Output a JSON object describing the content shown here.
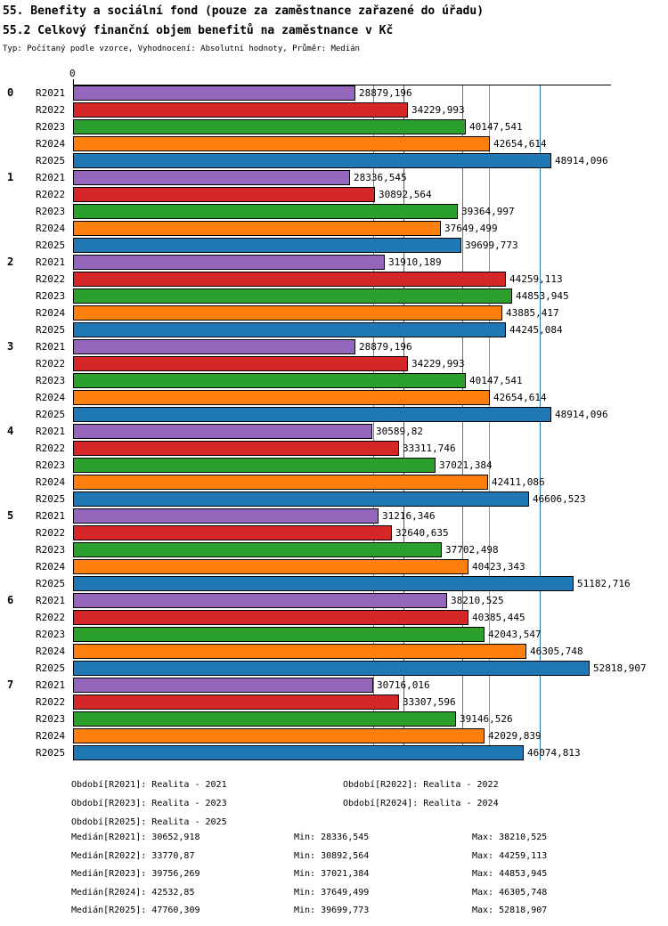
{
  "header": {
    "title": "55. Benefity a sociální fond (pouze za zaměstnance zařazené do úřadu)",
    "subtitle": "55.2 Celkový finanční objem benefitů na zaměstnance v Kč",
    "meta": "Typ: Počítaný podle vzorce, Vyhodnocení: Absolutní hodnoty, Průměr: Medián"
  },
  "chart_data": {
    "type": "bar",
    "orientation": "horizontal",
    "title": "55. Benefity a sociální fond (pouze za zaměstnance zařazené do úřadu)",
    "subtitle": "55.2 Celkový finanční objem benefitů na zaměstnance v Kč",
    "axis_origin_label": "0",
    "xlim": [
      0,
      55000
    ],
    "grid": "median-reference-lines",
    "series_names": [
      "R2021",
      "R2022",
      "R2023",
      "R2024",
      "R2025"
    ],
    "series_colors": {
      "R2021": "#9467bd",
      "R2022": "#d62728",
      "R2023": "#2ca02c",
      "R2024": "#ff7f0e",
      "R2025": "#1f77b4"
    },
    "groups": [
      {
        "label": "0",
        "bars": [
          {
            "series": "R2021",
            "value": "28879,196"
          },
          {
            "series": "R2022",
            "value": "34229,993"
          },
          {
            "series": "R2023",
            "value": "40147,541"
          },
          {
            "series": "R2024",
            "value": "42654,614"
          },
          {
            "series": "R2025",
            "value": "48914,096"
          }
        ]
      },
      {
        "label": "1",
        "bars": [
          {
            "series": "R2021",
            "value": "28336,545"
          },
          {
            "series": "R2022",
            "value": "30892,564"
          },
          {
            "series": "R2023",
            "value": "39364,997"
          },
          {
            "series": "R2024",
            "value": "37649,499"
          },
          {
            "series": "R2025",
            "value": "39699,773"
          }
        ]
      },
      {
        "label": "2",
        "bars": [
          {
            "series": "R2021",
            "value": "31910,189"
          },
          {
            "series": "R2022",
            "value": "44259,113"
          },
          {
            "series": "R2023",
            "value": "44853,945"
          },
          {
            "series": "R2024",
            "value": "43885,417"
          },
          {
            "series": "R2025",
            "value": "44245,084"
          }
        ]
      },
      {
        "label": "3",
        "bars": [
          {
            "series": "R2021",
            "value": "28879,196"
          },
          {
            "series": "R2022",
            "value": "34229,993"
          },
          {
            "series": "R2023",
            "value": "40147,541"
          },
          {
            "series": "R2024",
            "value": "42654,614"
          },
          {
            "series": "R2025",
            "value": "48914,096"
          }
        ]
      },
      {
        "label": "4",
        "bars": [
          {
            "series": "R2021",
            "value": "30589,82"
          },
          {
            "series": "R2022",
            "value": "33311,746"
          },
          {
            "series": "R2023",
            "value": "37021,384"
          },
          {
            "series": "R2024",
            "value": "42411,086"
          },
          {
            "series": "R2025",
            "value": "46606,523"
          }
        ]
      },
      {
        "label": "5",
        "bars": [
          {
            "series": "R2021",
            "value": "31216,346"
          },
          {
            "series": "R2022",
            "value": "32640,635"
          },
          {
            "series": "R2023",
            "value": "37702,498"
          },
          {
            "series": "R2024",
            "value": "40423,343"
          },
          {
            "series": "R2025",
            "value": "51182,716"
          }
        ]
      },
      {
        "label": "6",
        "bars": [
          {
            "series": "R2021",
            "value": "38210,525"
          },
          {
            "series": "R2022",
            "value": "40385,445"
          },
          {
            "series": "R2023",
            "value": "42043,547"
          },
          {
            "series": "R2024",
            "value": "46305,748"
          },
          {
            "series": "R2025",
            "value": "52818,907"
          }
        ]
      },
      {
        "label": "7",
        "bars": [
          {
            "series": "R2021",
            "value": "30716,016"
          },
          {
            "series": "R2022",
            "value": "33307,596"
          },
          {
            "series": "R2023",
            "value": "39146,526"
          },
          {
            "series": "R2024",
            "value": "42029,839"
          },
          {
            "series": "R2025",
            "value": "46074,813"
          }
        ]
      }
    ],
    "median_lines": [
      {
        "series": "R2021",
        "value": "30652,918"
      },
      {
        "series": "R2022",
        "value": "33770,87"
      },
      {
        "series": "R2023",
        "value": "39756,269"
      },
      {
        "series": "R2024",
        "value": "42532,85"
      },
      {
        "series": "R2025",
        "value": "47760,309"
      }
    ]
  },
  "legend": {
    "items": [
      "Období[R2021]: Realita - 2021",
      "Období[R2022]: Realita - 2022",
      "Období[R2023]: Realita - 2023",
      "Období[R2024]: Realita - 2024",
      "Období[R2025]: Realita - 2025"
    ]
  },
  "stats": {
    "rows": [
      {
        "median": "Medián[R2021]: 30652,918",
        "min": "Min: 28336,545",
        "max": "Max: 38210,525"
      },
      {
        "median": "Medián[R2022]: 33770,87",
        "min": "Min: 30892,564",
        "max": "Max: 44259,113"
      },
      {
        "median": "Medián[R2023]: 39756,269",
        "min": "Min: 37021,384",
        "max": "Max: 44853,945"
      },
      {
        "median": "Medián[R2024]: 42532,85",
        "min": "Min: 37649,499",
        "max": "Max: 46305,748"
      },
      {
        "median": "Medián[R2025]: 47760,309",
        "min": "Min: 39699,773",
        "max": "Max: 52818,907"
      }
    ]
  }
}
